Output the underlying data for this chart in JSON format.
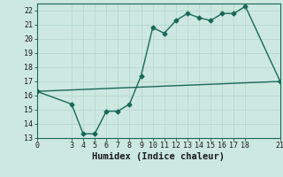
{
  "xlabel": "Humidex (Indice chaleur)",
  "ylabel": "",
  "background_color": "#cce8e0",
  "grid_color": "#b8d8d0",
  "line_color": "#1a6858",
  "xlim": [
    0,
    21
  ],
  "ylim": [
    13,
    22.5
  ],
  "yticks": [
    13,
    14,
    15,
    16,
    17,
    18,
    19,
    20,
    21,
    22
  ],
  "xticks": [
    0,
    3,
    4,
    5,
    6,
    7,
    8,
    9,
    10,
    11,
    12,
    13,
    14,
    15,
    16,
    17,
    18,
    21
  ],
  "line1_x": [
    0,
    3,
    4,
    5,
    6,
    7,
    8,
    9,
    10,
    11,
    12,
    13,
    14,
    15,
    16,
    17,
    18,
    21
  ],
  "line1_y": [
    16.3,
    15.4,
    13.3,
    13.3,
    14.9,
    14.9,
    15.4,
    17.4,
    20.8,
    20.4,
    21.3,
    21.8,
    21.5,
    21.3,
    21.8,
    21.8,
    22.3,
    17.0
  ],
  "line2_x": [
    0,
    21
  ],
  "line2_y": [
    16.3,
    17.0
  ],
  "marker_size": 2.5,
  "line_width": 1.0,
  "font_color": "#1a1a1a",
  "tick_fontsize": 6,
  "xlabel_fontsize": 7.5
}
